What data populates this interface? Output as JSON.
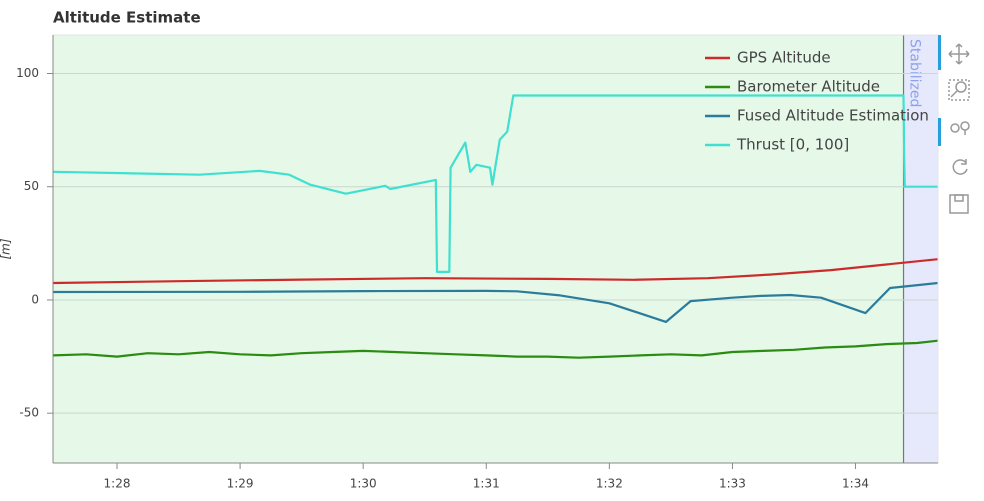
{
  "chart_data": {
    "type": "line",
    "title": "Altitude Estimate",
    "y_label": "[m]",
    "xlim": [
      87.48,
      94.67
    ],
    "ylim": [
      -72,
      117
    ],
    "xticks": [
      {
        "value": 88,
        "label": "1:28"
      },
      {
        "value": 89,
        "label": "1:29"
      },
      {
        "value": 90,
        "label": "1:30"
      },
      {
        "value": 91,
        "label": "1:31"
      },
      {
        "value": 92,
        "label": "1:32"
      },
      {
        "value": 93,
        "label": "1:33"
      },
      {
        "value": 94,
        "label": "1:34"
      }
    ],
    "yticks": [
      -50,
      0,
      50,
      100
    ],
    "grid": true,
    "legend": "top-right",
    "mode_regions": [
      {
        "start": 87.48,
        "end": 94.39,
        "color": "#e6f8e8"
      },
      {
        "start": 94.39,
        "end": 94.67,
        "color": "#e6e9fb",
        "label": "Stabilized"
      }
    ],
    "series": [
      {
        "name": "GPS Altitude",
        "color": "#cc2b2b",
        "x": [
          87.48,
          88.5,
          89.5,
          90.5,
          91.5,
          92.2,
          92.8,
          93.3,
          93.8,
          94.2,
          94.67
        ],
        "values": [
          7.5,
          8.3,
          9.0,
          9.6,
          9.3,
          8.9,
          9.6,
          11.2,
          13.2,
          15.4,
          18.0
        ]
      },
      {
        "name": "Barometer Altitude",
        "color": "#2a8c10",
        "x": [
          87.48,
          87.75,
          88.0,
          88.25,
          88.5,
          88.75,
          89.0,
          89.25,
          89.5,
          89.75,
          90.0,
          90.25,
          90.5,
          90.75,
          91.0,
          91.25,
          91.5,
          91.75,
          92.0,
          92.25,
          92.5,
          92.75,
          93.0,
          93.25,
          93.5,
          93.75,
          94.0,
          94.25,
          94.5,
          94.67
        ],
        "values": [
          -24.5,
          -24.0,
          -25.0,
          -23.5,
          -24.0,
          -23.0,
          -24.0,
          -24.5,
          -23.5,
          -23.0,
          -22.5,
          -23.0,
          -23.5,
          -24.0,
          -24.5,
          -25.0,
          -25.0,
          -25.5,
          -25.0,
          -24.5,
          -24.0,
          -24.5,
          -23.0,
          -22.5,
          -22.0,
          -21.0,
          -20.5,
          -19.5,
          -19.0,
          -18.0
        ]
      },
      {
        "name": "Fused Altitude Estimation",
        "color": "#2b7c9c",
        "x": [
          87.48,
          89.0,
          90.0,
          91.0,
          91.25,
          91.6,
          92.0,
          92.46,
          92.66,
          93.0,
          93.23,
          93.47,
          93.72,
          94.08,
          94.28,
          94.67
        ],
        "values": [
          3.5,
          3.6,
          3.9,
          4.0,
          3.8,
          2.0,
          -1.5,
          -9.7,
          -0.5,
          1.0,
          1.8,
          2.2,
          1.0,
          -5.8,
          5.3,
          7.5
        ]
      },
      {
        "name": "Thrust [0, 100]",
        "color": "#3fe0d0",
        "x": [
          87.48,
          88.67,
          89.16,
          89.4,
          89.57,
          89.86,
          90.18,
          90.22,
          90.59,
          90.6,
          90.7,
          90.71,
          90.83,
          90.87,
          90.92,
          91.03,
          91.05,
          91.11,
          91.17,
          91.22,
          94.39,
          94.395,
          94.4,
          94.67
        ],
        "values": [
          56.6,
          55.3,
          57.0,
          55.3,
          50.9,
          46.9,
          50.4,
          49.0,
          53.0,
          12.4,
          12.4,
          58.4,
          69.5,
          56.6,
          59.7,
          58.4,
          50.9,
          70.8,
          74.3,
          90.3,
          90.3,
          62.8,
          50.0,
          50.0
        ]
      }
    ]
  }
}
